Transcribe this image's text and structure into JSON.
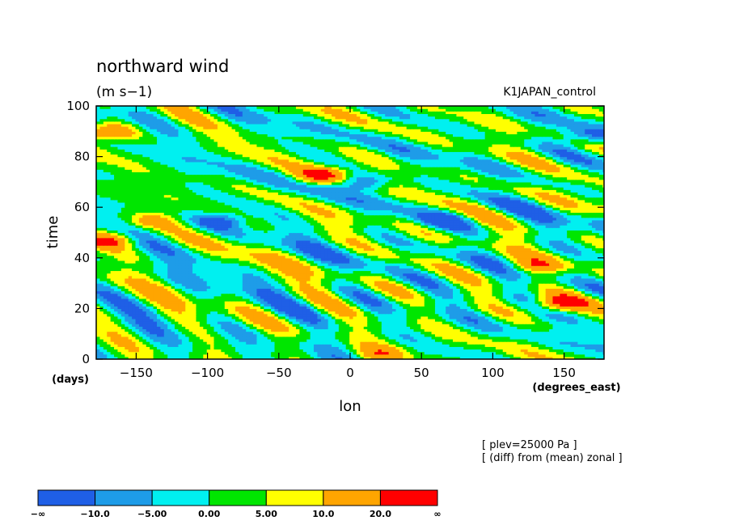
{
  "chart_data": {
    "type": "heatmap",
    "title": "northward wind",
    "units": "(m s−1)",
    "dataset": "K1JAPAN_control",
    "xlabel": "lon",
    "ylabel": "time",
    "x_units": "(degrees_east)",
    "y_units": "(days)",
    "xlim": [
      -178,
      178
    ],
    "ylim": [
      0,
      100
    ],
    "x_ticks": [
      -150,
      -100,
      -50,
      0,
      50,
      100,
      150
    ],
    "x_tick_labels": [
      "−150",
      "−100",
      "−50",
      "0",
      "50",
      "100",
      "150"
    ],
    "y_ticks": [
      0,
      20,
      40,
      60,
      80,
      100
    ],
    "y_tick_labels": [
      "0",
      "20",
      "40",
      "60",
      "80",
      "100"
    ],
    "annotations": [
      "[ plev=25000 Pa ]",
      "[ (diff) from (mean) zonal ]"
    ],
    "colorbar": {
      "colors": [
        "#1f5fe6",
        "#1e9ce8",
        "#00f0f0",
        "#00e600",
        "#ffff00",
        "#ffa500",
        "#ff0000"
      ],
      "labels": [
        "−∞",
        "−10.0",
        "−5.00",
        "0.00",
        "5.00",
        "10.0",
        "20.0",
        "∞"
      ],
      "bounds": [
        -10,
        -5,
        0,
        5,
        10,
        20
      ]
    },
    "features": [
      {
        "lon": -20,
        "time": 73,
        "value": 22
      },
      {
        "lon": 10,
        "time": 70,
        "value": -12
      },
      {
        "lon": 65,
        "time": 55,
        "value": -11
      },
      {
        "lon": 145,
        "time": 22,
        "value": 21
      },
      {
        "lon": -170,
        "time": 90,
        "value": 21
      },
      {
        "lon": -170,
        "time": 47,
        "value": 20
      },
      {
        "lon": 130,
        "time": 37,
        "value": 14
      },
      {
        "lon": -90,
        "time": 55,
        "value": -11
      },
      {
        "lon": 165,
        "time": 88,
        "value": -11
      },
      {
        "lon": -140,
        "time": 55,
        "value": 12
      },
      {
        "lon": 20,
        "time": 2,
        "value": 14
      }
    ]
  }
}
